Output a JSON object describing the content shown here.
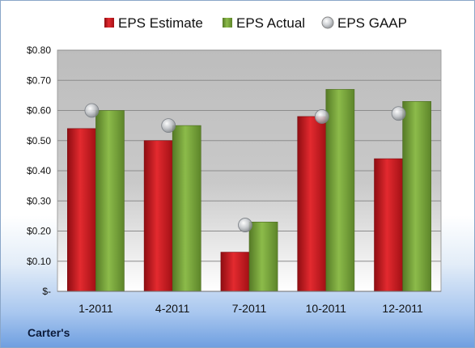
{
  "company_label": "Carter's",
  "colors": {
    "estimate": "#c8161d",
    "actual": "#77a33a",
    "gaap_marker": "#b8bcc0"
  },
  "chart_data": {
    "type": "bar",
    "categories": [
      "1-2011",
      "4-2011",
      "7-2011",
      "10-2011",
      "12-2011"
    ],
    "series": [
      {
        "name": "EPS Estimate",
        "values": [
          0.54,
          0.5,
          0.13,
          0.58,
          0.44
        ]
      },
      {
        "name": "EPS Actual",
        "values": [
          0.6,
          0.55,
          0.23,
          0.67,
          0.63
        ]
      },
      {
        "name": "EPS GAAP",
        "type": "scatter",
        "values": [
          0.6,
          0.55,
          0.22,
          0.58,
          0.59
        ]
      }
    ],
    "ylim": [
      0,
      0.8
    ],
    "ytick_labels": [
      "$-",
      "$0.10",
      "$0.20",
      "$0.30",
      "$0.40",
      "$0.50",
      "$0.60",
      "$0.70",
      "$0.80"
    ],
    "grid": true,
    "legend_position": "top"
  }
}
